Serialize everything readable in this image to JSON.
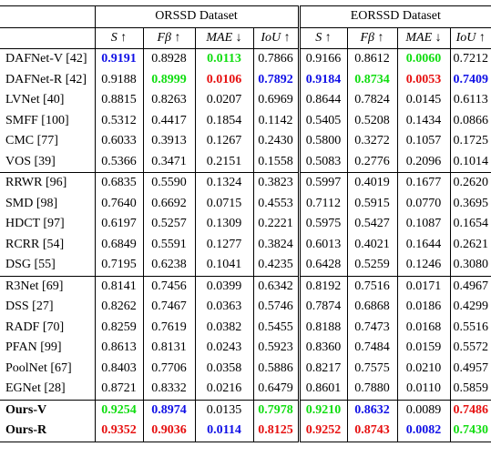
{
  "dataset_headers": [
    "ORSSD Dataset",
    "EORSSD Dataset"
  ],
  "metric_headers": [
    "S ↑",
    "Fβ ↑",
    "MAE ↓",
    "IoU ↑",
    "S ↑",
    "Fβ ↑",
    "MAE ↓",
    "IoU ↑"
  ],
  "colors": {
    "blue": "#1010e6",
    "red": "#e61010",
    "green": "#10dd10"
  },
  "rows": [
    {
      "name": "DAFNet-V [42]",
      "group_start": true,
      "values": [
        "0.9191",
        "0.8928",
        "0.0113",
        "0.7866",
        "0.9166",
        "0.8612",
        "0.0060",
        "0.7212"
      ],
      "styles": [
        "blue",
        "",
        "green",
        "",
        "",
        "",
        "green",
        ""
      ]
    },
    {
      "name": "DAFNet-R [42]",
      "values": [
        "0.9188",
        "0.8999",
        "0.0106",
        "0.7892",
        "0.9184",
        "0.8734",
        "0.0053",
        "0.7409"
      ],
      "styles": [
        "",
        "green",
        "red",
        "blue",
        "blue",
        "green",
        "red",
        "blue"
      ]
    },
    {
      "name": "LVNet [40]",
      "values": [
        "0.8815",
        "0.8263",
        "0.0207",
        "0.6969",
        "0.8644",
        "0.7824",
        "0.0145",
        "0.6113"
      ],
      "styles": [
        "",
        "",
        "",
        "",
        "",
        "",
        "",
        ""
      ]
    },
    {
      "name": "SMFF [100]",
      "values": [
        "0.5312",
        "0.4417",
        "0.1854",
        "0.1142",
        "0.5405",
        "0.5208",
        "0.1434",
        "0.0866"
      ],
      "styles": [
        "",
        "",
        "",
        "",
        "",
        "",
        "",
        ""
      ]
    },
    {
      "name": "CMC [77]",
      "values": [
        "0.6033",
        "0.3913",
        "0.1267",
        "0.2430",
        "0.5800",
        "0.3272",
        "0.1057",
        "0.1725"
      ],
      "styles": [
        "",
        "",
        "",
        "",
        "",
        "",
        "",
        ""
      ]
    },
    {
      "name": "VOS [39]",
      "values": [
        "0.5366",
        "0.3471",
        "0.2151",
        "0.1558",
        "0.5083",
        "0.2776",
        "0.2096",
        "0.1014"
      ],
      "styles": [
        "",
        "",
        "",
        "",
        "",
        "",
        "",
        ""
      ]
    },
    {
      "name": "RRWR [96]",
      "group_start": true,
      "values": [
        "0.6835",
        "0.5590",
        "0.1324",
        "0.3823",
        "0.5997",
        "0.4019",
        "0.1677",
        "0.2620"
      ],
      "styles": [
        "",
        "",
        "",
        "",
        "",
        "",
        "",
        ""
      ]
    },
    {
      "name": "SMD [98]",
      "values": [
        "0.7640",
        "0.6692",
        "0.0715",
        "0.4553",
        "0.7112",
        "0.5915",
        "0.0770",
        "0.3695"
      ],
      "styles": [
        "",
        "",
        "",
        "",
        "",
        "",
        "",
        ""
      ]
    },
    {
      "name": "HDCT [97]",
      "values": [
        "0.6197",
        "0.5257",
        "0.1309",
        "0.2221",
        "0.5975",
        "0.5427",
        "0.1087",
        "0.1654"
      ],
      "styles": [
        "",
        "",
        "",
        "",
        "",
        "",
        "",
        ""
      ]
    },
    {
      "name": "RCRR [54]",
      "values": [
        "0.6849",
        "0.5591",
        "0.1277",
        "0.3824",
        "0.6013",
        "0.4021",
        "0.1644",
        "0.2621"
      ],
      "styles": [
        "",
        "",
        "",
        "",
        "",
        "",
        "",
        ""
      ]
    },
    {
      "name": "DSG [55]",
      "values": [
        "0.7195",
        "0.6238",
        "0.1041",
        "0.4235",
        "0.6428",
        "0.5259",
        "0.1246",
        "0.3080"
      ],
      "styles": [
        "",
        "",
        "",
        "",
        "",
        "",
        "",
        ""
      ]
    },
    {
      "name": "R3Net [69]",
      "group_start": true,
      "values": [
        "0.8141",
        "0.7456",
        "0.0399",
        "0.6342",
        "0.8192",
        "0.7516",
        "0.0171",
        "0.4967"
      ],
      "styles": [
        "",
        "",
        "",
        "",
        "",
        "",
        "",
        ""
      ]
    },
    {
      "name": "DSS [27]",
      "values": [
        "0.8262",
        "0.7467",
        "0.0363",
        "0.5746",
        "0.7874",
        "0.6868",
        "0.0186",
        "0.4299"
      ],
      "styles": [
        "",
        "",
        "",
        "",
        "",
        "",
        "",
        ""
      ]
    },
    {
      "name": "RADF [70]",
      "values": [
        "0.8259",
        "0.7619",
        "0.0382",
        "0.5455",
        "0.8188",
        "0.7473",
        "0.0168",
        "0.5516"
      ],
      "styles": [
        "",
        "",
        "",
        "",
        "",
        "",
        "",
        ""
      ]
    },
    {
      "name": "PFAN [99]",
      "values": [
        "0.8613",
        "0.8131",
        "0.0243",
        "0.5923",
        "0.8360",
        "0.7484",
        "0.0159",
        "0.5572"
      ],
      "styles": [
        "",
        "",
        "",
        "",
        "",
        "",
        "",
        ""
      ]
    },
    {
      "name": "PoolNet [67]",
      "values": [
        "0.8403",
        "0.7706",
        "0.0358",
        "0.5886",
        "0.8217",
        "0.7575",
        "0.0210",
        "0.4957"
      ],
      "styles": [
        "",
        "",
        "",
        "",
        "",
        "",
        "",
        ""
      ]
    },
    {
      "name": "EGNet [28]",
      "values": [
        "0.8721",
        "0.8332",
        "0.0216",
        "0.6479",
        "0.8601",
        "0.7880",
        "0.0110",
        "0.5859"
      ],
      "styles": [
        "",
        "",
        "",
        "",
        "",
        "",
        "",
        ""
      ]
    },
    {
      "name": "Ours-V",
      "group_start": true,
      "ours": true,
      "values": [
        "0.9254",
        "0.8974",
        "0.0135",
        "0.7978",
        "0.9210",
        "0.8632",
        "0.0089",
        "0.7486"
      ],
      "styles": [
        "green",
        "blue",
        "black",
        "green",
        "green",
        "blue",
        "black",
        "red"
      ]
    },
    {
      "name": "Ours-R",
      "ours": true,
      "last": true,
      "values": [
        "0.9352",
        "0.9036",
        "0.0114",
        "0.8125",
        "0.9252",
        "0.8743",
        "0.0082",
        "0.7430"
      ],
      "styles": [
        "red",
        "red",
        "blue",
        "red",
        "red",
        "red",
        "blue",
        "green"
      ]
    }
  ]
}
